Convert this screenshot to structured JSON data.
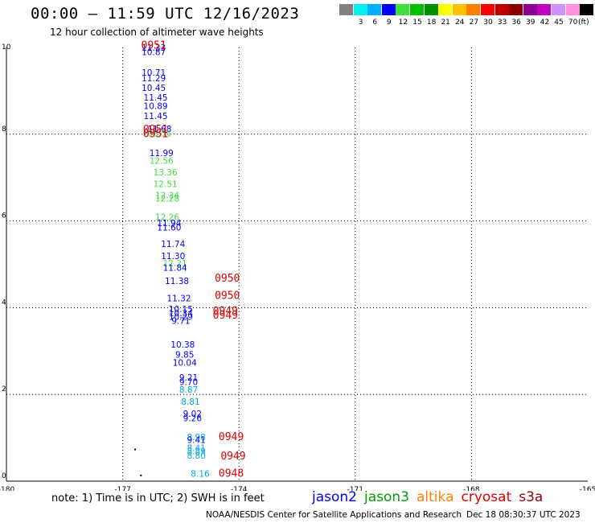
{
  "header": {
    "title": "00:00 – 11:59 UTC 12/16/2023",
    "subtitle": "12 hour collection of altimeter wave heights"
  },
  "legend": {
    "unit": "(ft)",
    "swatches": [
      {
        "color": "#808080",
        "label": ""
      },
      {
        "color": "#00f0f0",
        "label": "3"
      },
      {
        "color": "#00b0ff",
        "label": "6"
      },
      {
        "color": "#0000ff",
        "label": "9"
      },
      {
        "color": "#40e040",
        "label": "12"
      },
      {
        "color": "#00c000",
        "label": "15"
      },
      {
        "color": "#009000",
        "label": "18"
      },
      {
        "color": "#ffff00",
        "label": "21"
      },
      {
        "color": "#ffc000",
        "label": "24"
      },
      {
        "color": "#ff8000",
        "label": "27"
      },
      {
        "color": "#ff0000",
        "label": "30"
      },
      {
        "color": "#c00000",
        "label": "33"
      },
      {
        "color": "#900000",
        "label": "36"
      },
      {
        "color": "#900090",
        "label": "39"
      },
      {
        "color": "#c000c0",
        "label": "42"
      },
      {
        "color": "#d090ff",
        "label": "45"
      },
      {
        "color": "#ff90e0",
        "label": "70"
      },
      {
        "color": "#000000",
        "label": ""
      }
    ]
  },
  "colors": {
    "jason2": "#0000ff",
    "jason3": "#00a000",
    "altika": "#ff8000",
    "cryosat": "#e00000",
    "s3a": "#900000",
    "sky": "#00a8e8",
    "lightgreen": "#40e040"
  },
  "footer": {
    "note": "note: 1) Time is in UTC; 2) SWH is in feet",
    "satellites": [
      "jason2",
      "jason3",
      "altika",
      "cryosat",
      "s3a"
    ],
    "credit": "NOAA/NESDIS Center for Satellite Applications and Research",
    "stamp": "Dec 18 08:30:37 UTC 2023"
  },
  "chart_data": {
    "type": "scatter",
    "xlim": [
      -180,
      -165
    ],
    "ylim": [
      0,
      10
    ],
    "xticks": [
      "-180",
      "-177",
      "-174",
      "-171",
      "-168",
      "-165"
    ],
    "yticks": [
      "0",
      "2",
      "4",
      "6",
      "8",
      "10"
    ],
    "grid": true,
    "wave_heights": [
      {
        "x": -176.2,
        "y": 9.93,
        "text": "11.33",
        "color": "blue"
      },
      {
        "x": -176.2,
        "y": 9.82,
        "text": "10.87",
        "color": "blue"
      },
      {
        "x": -176.2,
        "y": 9.35,
        "text": "10.71",
        "color": "blue"
      },
      {
        "x": -176.2,
        "y": 9.22,
        "text": "11.29",
        "color": "blue"
      },
      {
        "x": -176.2,
        "y": 9.0,
        "text": "10.45",
        "color": "blue"
      },
      {
        "x": -176.15,
        "y": 8.78,
        "text": "11.45",
        "color": "blue"
      },
      {
        "x": -176.15,
        "y": 8.58,
        "text": "10.89",
        "color": "blue"
      },
      {
        "x": -176.15,
        "y": 8.35,
        "text": "11.45",
        "color": "blue"
      },
      {
        "x": -176.05,
        "y": 8.05,
        "text": "11.68",
        "color": "blue"
      },
      {
        "x": -176.05,
        "y": 7.95,
        "text": "13.51",
        "color": "lightgreen"
      },
      {
        "x": -176.0,
        "y": 7.5,
        "text": "11.99",
        "color": "blue"
      },
      {
        "x": -176.0,
        "y": 7.32,
        "text": "12.56",
        "color": "lightgreen"
      },
      {
        "x": -175.9,
        "y": 7.05,
        "text": "13.36",
        "color": "lightgreen"
      },
      {
        "x": -175.9,
        "y": 6.78,
        "text": "12.51",
        "color": "lightgreen"
      },
      {
        "x": -175.85,
        "y": 6.52,
        "text": "12.34",
        "color": "lightgreen"
      },
      {
        "x": -175.85,
        "y": 6.45,
        "text": "12.28",
        "color": "lightgreen"
      },
      {
        "x": -175.85,
        "y": 6.02,
        "text": "12.26",
        "color": "lightgreen"
      },
      {
        "x": -175.8,
        "y": 5.88,
        "text": "11.94",
        "color": "blue"
      },
      {
        "x": -175.8,
        "y": 5.78,
        "text": "11.60",
        "color": "blue"
      },
      {
        "x": -175.7,
        "y": 5.4,
        "text": "11.74",
        "color": "blue"
      },
      {
        "x": -175.7,
        "y": 5.12,
        "text": "11.30",
        "color": "blue"
      },
      {
        "x": -175.65,
        "y": 4.95,
        "text": "12.21",
        "color": "lightgreen"
      },
      {
        "x": -175.65,
        "y": 4.85,
        "text": "11.84",
        "color": "blue"
      },
      {
        "x": -175.6,
        "y": 4.55,
        "text": "11.38",
        "color": "blue"
      },
      {
        "x": -175.55,
        "y": 4.15,
        "text": "11.32",
        "color": "blue"
      },
      {
        "x": -175.5,
        "y": 3.9,
        "text": "10.15",
        "color": "blue"
      },
      {
        "x": -175.5,
        "y": 3.8,
        "text": "10.34",
        "color": "blue"
      },
      {
        "x": -175.5,
        "y": 3.72,
        "text": "10.29",
        "color": "blue"
      },
      {
        "x": -175.5,
        "y": 3.63,
        "text": "9.71",
        "color": "blue"
      },
      {
        "x": -175.45,
        "y": 3.08,
        "text": "10.38",
        "color": "blue"
      },
      {
        "x": -175.4,
        "y": 2.85,
        "text": "9.85",
        "color": "blue"
      },
      {
        "x": -175.4,
        "y": 2.66,
        "text": "10.04",
        "color": "blue"
      },
      {
        "x": -175.3,
        "y": 2.32,
        "text": "9.21",
        "color": "blue"
      },
      {
        "x": -175.3,
        "y": 2.22,
        "text": "9.70",
        "color": "blue"
      },
      {
        "x": -175.3,
        "y": 2.04,
        "text": "8.87",
        "color": "sky"
      },
      {
        "x": -175.25,
        "y": 1.76,
        "text": "8.81",
        "color": "sky"
      },
      {
        "x": -175.2,
        "y": 1.48,
        "text": "9.02",
        "color": "blue"
      },
      {
        "x": -175.2,
        "y": 1.38,
        "text": "9.26",
        "color": "blue"
      },
      {
        "x": -175.1,
        "y": 0.95,
        "text": "8.98",
        "color": "sky"
      },
      {
        "x": -175.1,
        "y": 0.88,
        "text": "9.41",
        "color": "blue"
      },
      {
        "x": -175.1,
        "y": 0.7,
        "text": "8.41",
        "color": "sky"
      },
      {
        "x": -175.1,
        "y": 0.62,
        "text": "8.89",
        "color": "sky"
      },
      {
        "x": -175.1,
        "y": 0.52,
        "text": "8.80",
        "color": "sky"
      },
      {
        "x": -175.0,
        "y": 0.1,
        "text": "8.16",
        "color": "sky"
      }
    ],
    "time_labels": [
      {
        "x": -176.2,
        "y": 9.97,
        "text": "0951"
      },
      {
        "x": -176.15,
        "y": 8.03,
        "text": "0951"
      },
      {
        "x": -176.15,
        "y": 7.93,
        "text": "0951"
      },
      {
        "x": -174.3,
        "y": 4.6,
        "text": "0950"
      },
      {
        "x": -174.3,
        "y": 4.2,
        "text": "0950"
      },
      {
        "x": -174.35,
        "y": 3.85,
        "text": "0949"
      },
      {
        "x": -174.35,
        "y": 3.75,
        "text": "0949"
      },
      {
        "x": -174.2,
        "y": 0.95,
        "text": "0949"
      },
      {
        "x": -174.15,
        "y": 0.5,
        "text": "0949"
      },
      {
        "x": -174.2,
        "y": 0.1,
        "text": "0948"
      }
    ],
    "dots": [
      {
        "x": -176.7,
        "y": 0.75
      },
      {
        "x": -176.55,
        "y": 0.15
      }
    ]
  }
}
